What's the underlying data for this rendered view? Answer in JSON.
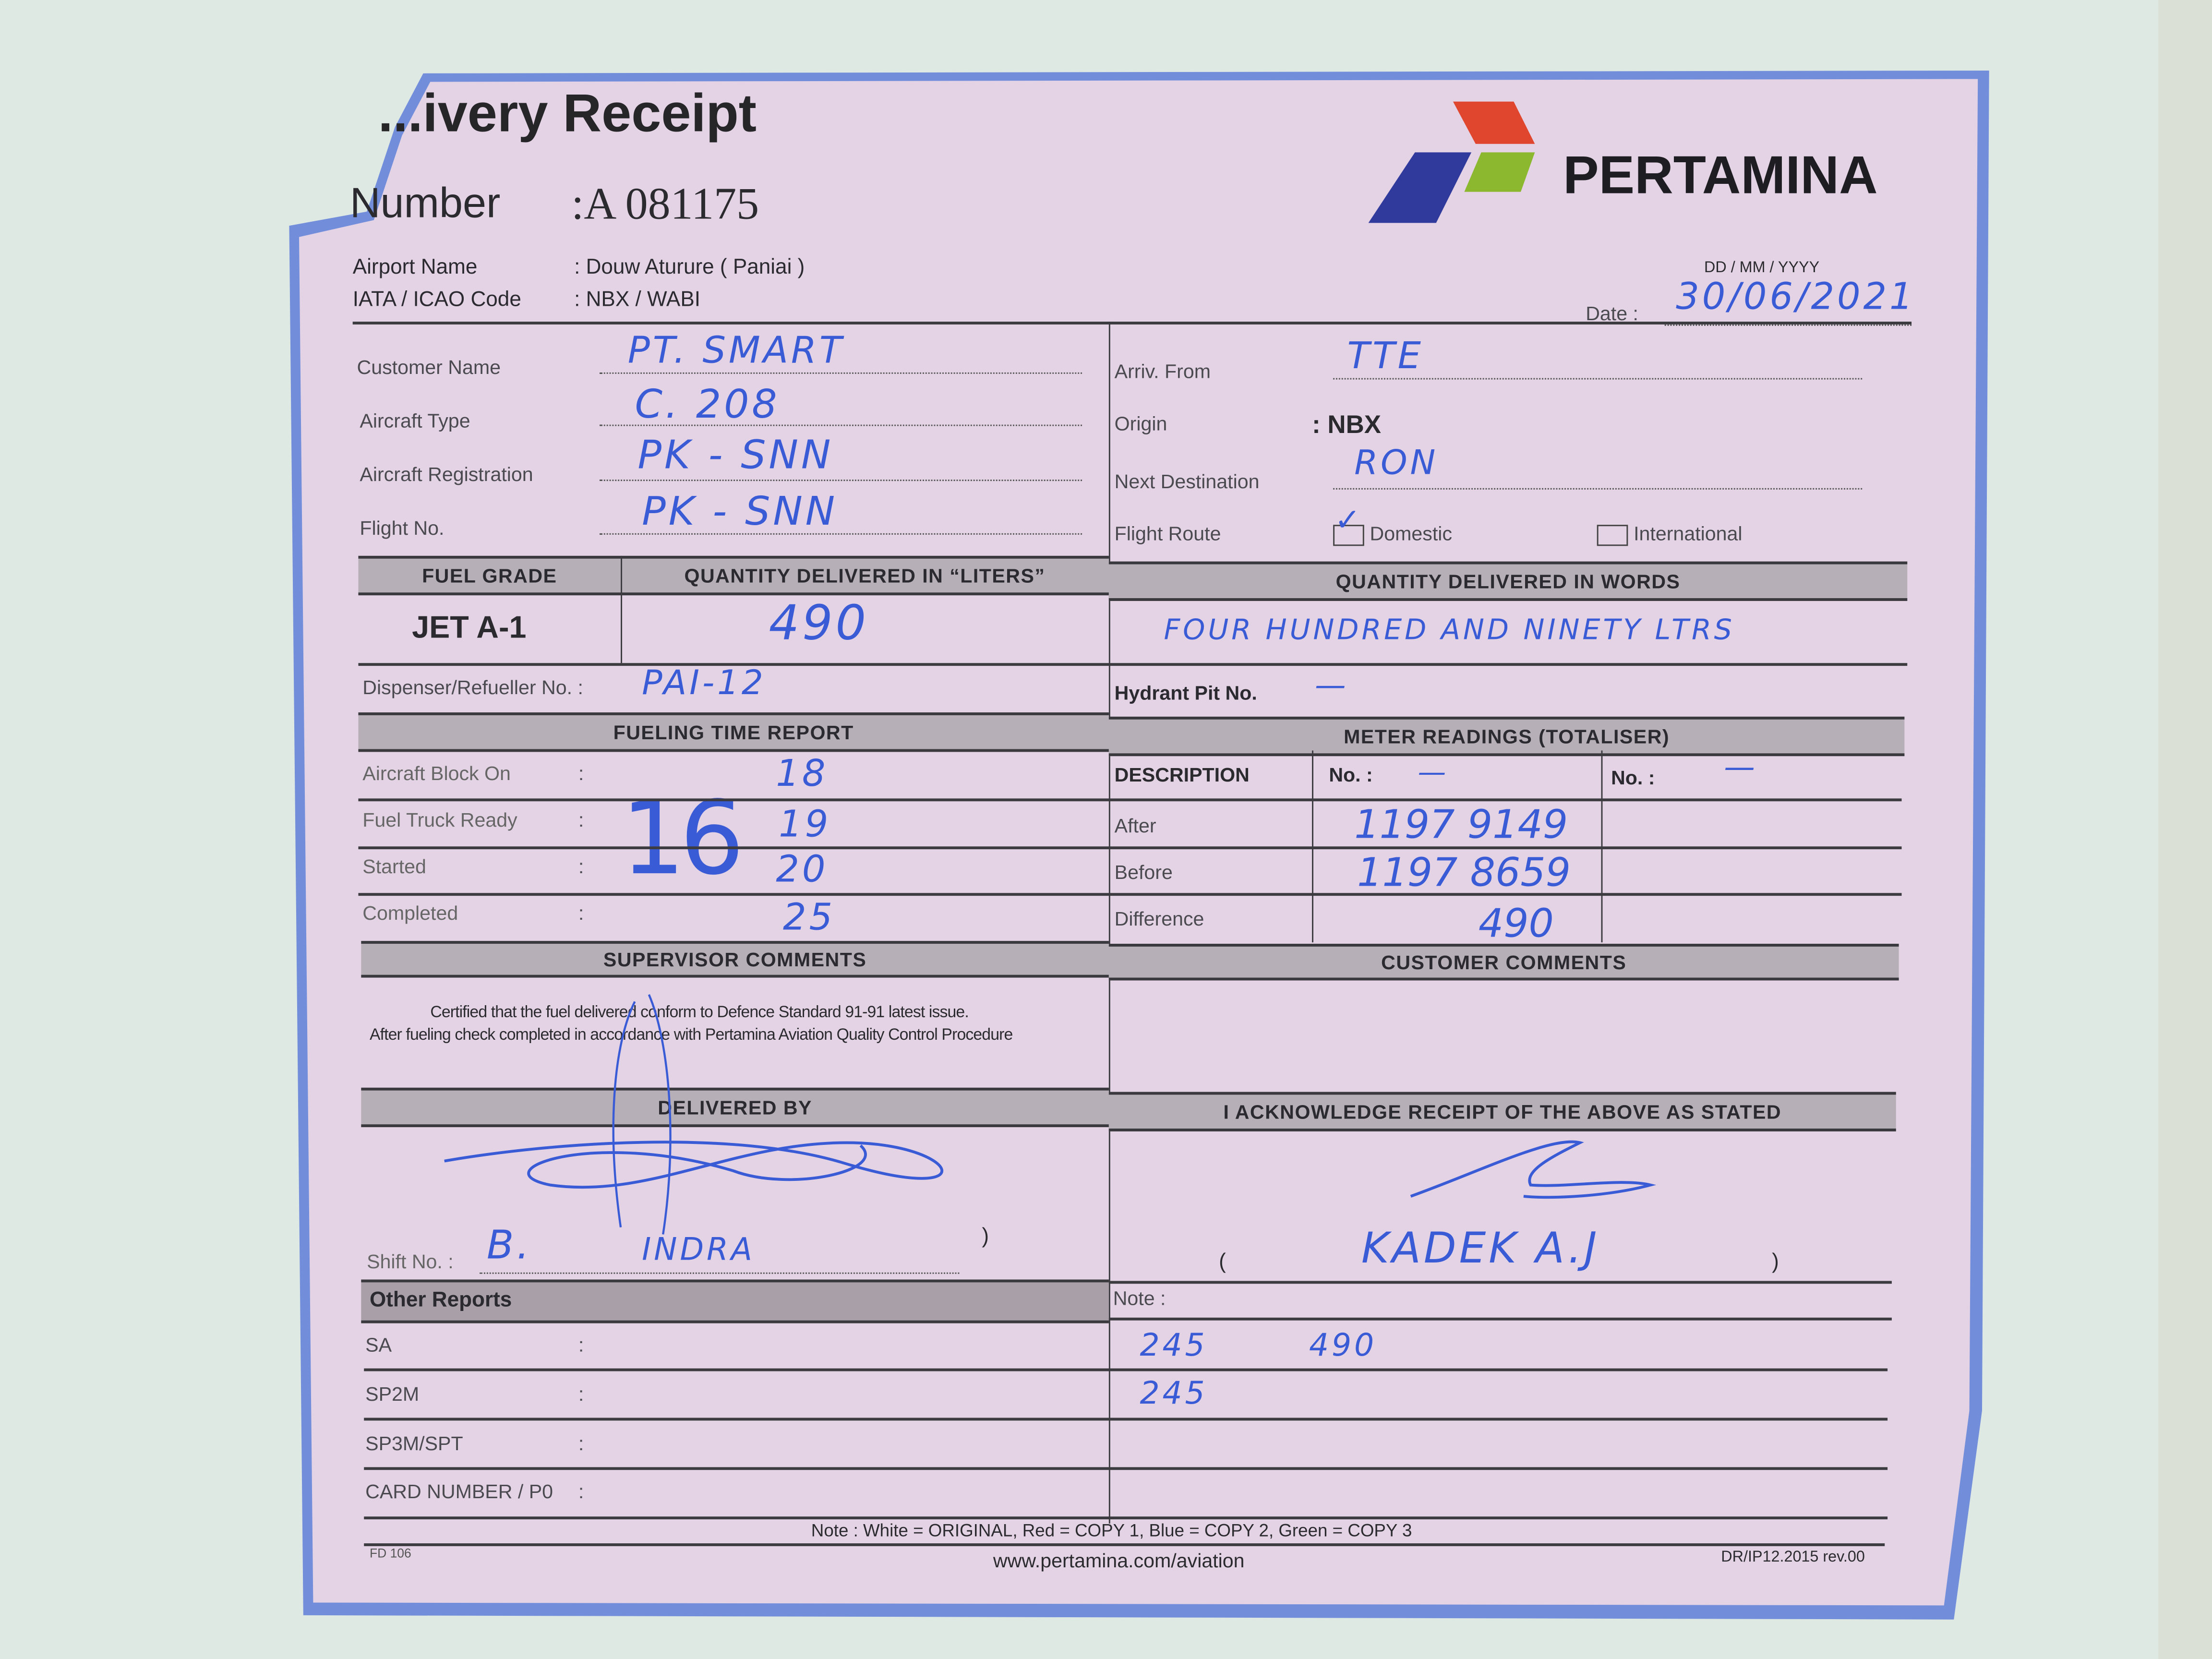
{
  "header": {
    "title": "...ivery Receipt",
    "number_label": "Number",
    "number_value": ":A  081175",
    "brand": "PERTAMINA",
    "airport_label": "Airport Name",
    "airport_value": ": Douw Aturure ( Paniai )",
    "iata_label": "IATA / ICAO Code",
    "iata_value": ": NBX / WABI",
    "date_format": "DD  /  MM  /  YYYY",
    "date_label": "Date :",
    "date_value": "30/06/2021",
    "logo_colors": {
      "red": "#e0452e",
      "green": "#8bb82e",
      "blue": "#2f3a9c"
    }
  },
  "flight_left": [
    {
      "label": "Customer Name",
      "value": "PT. SMART"
    },
    {
      "label": "Aircraft Type",
      "value": "C. 208"
    },
    {
      "label": "Aircraft Registration",
      "value": "PK - SNN"
    },
    {
      "label": "Flight No.",
      "value": "PK - SNN"
    }
  ],
  "flight_right": {
    "arriv_label": "Arriv. From",
    "arriv_value": "TTE",
    "origin_label": "Origin",
    "origin_value": ": NBX",
    "next_label": "Next Destination",
    "next_value": "RON",
    "route_label": "Flight Route",
    "domestic_label": "Domestic",
    "domestic_checked": true,
    "international_label": "International",
    "international_checked": false
  },
  "fuel": {
    "grade_header": "FUEL GRADE",
    "qty_header": "QUANTITY DELIVERED IN “LITERS”",
    "words_header": "QUANTITY DELIVERED IN WORDS",
    "grade": "JET A-1",
    "qty": "490",
    "words": "FOUR  HUNDRED  AND  NINETY  LTRS",
    "dispenser_label": "Dispenser/Refueller No.  :",
    "dispenser_value": "PAI-12",
    "hydrant_label": "Hydrant Pit No.",
    "hydrant_value": "—"
  },
  "time_report": {
    "header": "FUELING TIME REPORT",
    "hour": "16",
    "rows": [
      {
        "label": "Aircraft Block On",
        "value": "18"
      },
      {
        "label": "Fuel Truck Ready",
        "value": "19"
      },
      {
        "label": "Started",
        "value": "20"
      },
      {
        "label": "Completed",
        "value": "25"
      }
    ]
  },
  "meter": {
    "header": "METER READINGS (TOTALISER)",
    "desc_label": "DESCRIPTION",
    "no1_label": "No. :",
    "no1_value": "—",
    "no2_label": "No. :",
    "no2_value": "—",
    "rows": [
      {
        "label": "After",
        "value": "1197  9149"
      },
      {
        "label": "Before",
        "value": "1197  8659"
      },
      {
        "label": "Difference",
        "value": "490"
      }
    ]
  },
  "comments": {
    "supervisor_header": "SUPERVISOR  COMMENTS",
    "customer_header": "CUSTOMER  COMMENTS",
    "line1": "Certified that the fuel delivered conform to Defence Standard 91-91 latest issue.",
    "line2": "After fueling check completed in accordance with Pertamina Aviation Quality Control Procedure"
  },
  "delivery": {
    "delivered_header": "DELIVERED BY",
    "ack_header": "I ACKNOWLEDGE RECEIPT OF THE ABOVE AS STATED",
    "shift_label": "Shift No.  :",
    "shift_value": "B.",
    "deliverer_name": "INDRA",
    "close_paren": ")",
    "open_paren_right": "(",
    "receiver_name": "KADEK   A.J",
    "close_paren_right": ")"
  },
  "other_reports": {
    "header": "Other Reports",
    "note_label": "Note :",
    "rows": [
      {
        "label": "SA",
        "note": "245        490"
      },
      {
        "label": "SP2M",
        "note": "245"
      },
      {
        "label": "SP3M/SPT",
        "note": ""
      },
      {
        "label": "CARD NUMBER / P0",
        "note": ""
      }
    ]
  },
  "footer": {
    "copy_note": "Note :   White = ORIGINAL, Red = COPY 1,  Blue = COPY 2,  Green = COPY 3",
    "form_code": "FD 106",
    "url": "www.pertamina.com/aviation",
    "revision": "DR/IP12.2015 rev.00"
  }
}
